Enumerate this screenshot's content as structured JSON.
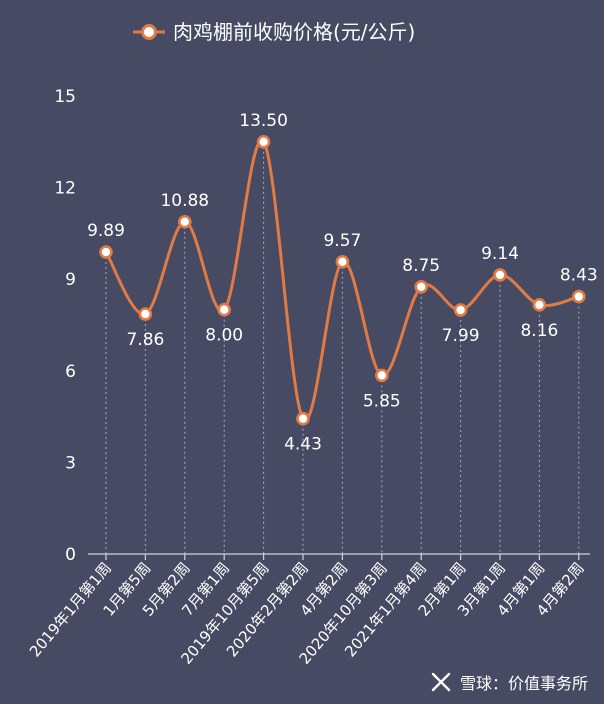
{
  "chart_data": {
    "type": "line",
    "title": "",
    "xlabel": "",
    "ylabel": "",
    "ylim": [
      0,
      15
    ],
    "yticks": [
      0,
      3,
      6,
      9,
      12,
      15
    ],
    "legend": {
      "position": "top-center"
    },
    "categories": [
      "2019年1月第1周",
      "1月第5周",
      "5月第2周",
      "7月第1周",
      "2019年10月第5周",
      "2020年2月第2周",
      "4月第2周",
      "2020年10月第3周",
      "2021年1月第4周",
      "2月第1周",
      "3月第1周",
      "4月第1周",
      "4月第2周"
    ],
    "series": [
      {
        "name": "肉鸡棚前收购价格(元/公斤)",
        "values": [
          9.89,
          7.86,
          10.88,
          8.0,
          13.5,
          4.43,
          9.57,
          5.85,
          8.75,
          7.99,
          9.14,
          8.16,
          8.43
        ],
        "labels": [
          "9.89",
          "7.86",
          "10.88",
          "8.00",
          "13.50",
          "4.43",
          "9.57",
          "5.85",
          "8.75",
          "7.99",
          "9.14",
          "8.16",
          "8.43"
        ],
        "label_pos": [
          "above",
          "below",
          "above",
          "below",
          "above",
          "below",
          "above",
          "below",
          "above",
          "below",
          "above",
          "below",
          "above"
        ],
        "color": "#e07b45"
      }
    ]
  },
  "watermark": {
    "text": "雪球：价值事务所"
  },
  "colors": {
    "background": "#464b63",
    "line": "#e07b45",
    "text": "#ffffff"
  }
}
